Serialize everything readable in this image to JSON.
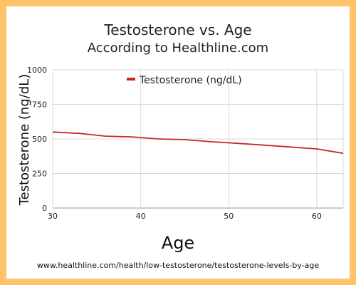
{
  "chart_data": {
    "type": "line",
    "title": "Testosterone vs. Age",
    "subtitle": "According to Healthline.com",
    "xlabel": "Age",
    "ylabel": "Testosterone (ng/dL)",
    "xlim": [
      30,
      63
    ],
    "ylim": [
      0,
      1000
    ],
    "xticks": [
      "30",
      "40",
      "50",
      "60"
    ],
    "yticks": [
      "0",
      "250",
      "500",
      "750",
      "1000"
    ],
    "grid": true,
    "legend_position": "top",
    "series": [
      {
        "name": "Testosterone (ng/dL)",
        "color": "#C62828",
        "x": [
          30,
          33,
          36,
          39,
          42,
          45,
          48,
          51,
          54,
          57,
          60,
          63
        ],
        "y": [
          550,
          540,
          520,
          515,
          500,
          495,
          480,
          468,
          455,
          442,
          428,
          396
        ]
      }
    ]
  },
  "footer": {
    "source": "www.healthline.com/health/low-testosterone/testosterone-levels-by-age"
  },
  "colors": {
    "frame": "#FFC36B",
    "grid": "#D9D9D9",
    "axis": "#999999"
  }
}
